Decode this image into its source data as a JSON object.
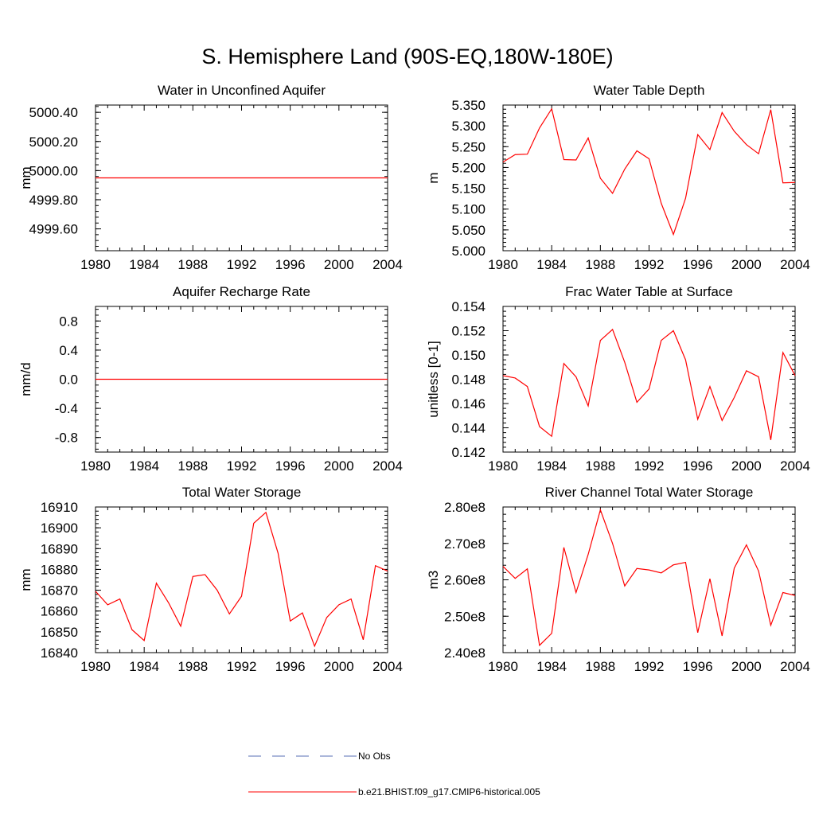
{
  "figure": {
    "title": "S. Hemisphere Land (90S-EQ,180W-180E)"
  },
  "legend": {
    "items": [
      {
        "label": "No Obs",
        "color": "#5a6fb5",
        "style": "dashed"
      },
      {
        "label": "b.e21.BHIST.f09_g17.CMIP6-historical.005",
        "color": "#ff0000",
        "style": "solid"
      }
    ]
  },
  "chart_data": [
    {
      "type": "line",
      "title": "Water in Unconfined Aquifer",
      "xlabel": "",
      "ylabel": "mm",
      "xlim": [
        1980,
        2004
      ],
      "ylim": [
        4999.45,
        5000.45
      ],
      "x_ticks": [
        1980,
        1984,
        1988,
        1992,
        1996,
        2000,
        2004
      ],
      "x_tick_labels": [
        "1980",
        "1984",
        "1988",
        "1992",
        "1996",
        "2000",
        "2004"
      ],
      "y_ticks": [
        4999.6,
        4999.8,
        5000.0,
        5000.2,
        5000.4
      ],
      "y_tick_labels": [
        "4999.60",
        "4999.80",
        "5000.00",
        "5000.20",
        "5000.40"
      ],
      "series": [
        {
          "name": "b.e21.BHIST.f09_g17.CMIP6-historical.005",
          "color": "#ff0000",
          "x": [
            1980,
            2004
          ],
          "values": [
            4999.95,
            4999.95
          ]
        }
      ]
    },
    {
      "type": "line",
      "title": "Water Table Depth",
      "xlabel": "",
      "ylabel": "m",
      "xlim": [
        1980,
        2004
      ],
      "ylim": [
        5.0,
        5.35
      ],
      "x_ticks": [
        1980,
        1984,
        1988,
        1992,
        1996,
        2000,
        2004
      ],
      "x_tick_labels": [
        "1980",
        "1984",
        "1988",
        "1992",
        "1996",
        "2000",
        "2004"
      ],
      "y_ticks": [
        5.0,
        5.05,
        5.1,
        5.15,
        5.2,
        5.25,
        5.3,
        5.35
      ],
      "y_tick_labels": [
        "5.000",
        "5.050",
        "5.100",
        "5.150",
        "5.200",
        "5.250",
        "5.300",
        "5.350"
      ],
      "series": [
        {
          "name": "b.e21.BHIST.f09_g17.CMIP6-historical.005",
          "color": "#ff0000",
          "x": [
            1980,
            1981,
            1982,
            1983,
            1984,
            1985,
            1986,
            1987,
            1988,
            1989,
            1990,
            1991,
            1992,
            1993,
            1994,
            1995,
            1996,
            1997,
            1998,
            1999,
            2000,
            2001,
            2002,
            2003,
            2004
          ],
          "values": [
            5.213,
            5.231,
            5.232,
            5.295,
            5.341,
            5.219,
            5.218,
            5.271,
            5.174,
            5.138,
            5.196,
            5.24,
            5.221,
            5.114,
            5.039,
            5.126,
            5.279,
            5.243,
            5.332,
            5.287,
            5.255,
            5.233,
            5.339,
            5.163,
            5.164
          ]
        }
      ]
    },
    {
      "type": "line",
      "title": "Aquifer Recharge Rate",
      "xlabel": "",
      "ylabel": "mm/d",
      "xlim": [
        1980,
        2004
      ],
      "ylim": [
        -1.0,
        1.0
      ],
      "x_ticks": [
        1980,
        1984,
        1988,
        1992,
        1996,
        2000,
        2004
      ],
      "x_tick_labels": [
        "1980",
        "1984",
        "1988",
        "1992",
        "1996",
        "2000",
        "2004"
      ],
      "y_ticks": [
        -0.8,
        -0.4,
        0.0,
        0.4,
        0.8
      ],
      "y_tick_labels": [
        "-0.8",
        "-0.4",
        "0.0",
        "0.4",
        "0.8"
      ],
      "series": [
        {
          "name": "b.e21.BHIST.f09_g17.CMIP6-historical.005",
          "color": "#ff0000",
          "x": [
            1980,
            2004
          ],
          "values": [
            0.0,
            0.0
          ]
        }
      ]
    },
    {
      "type": "line",
      "title": "Frac Water Table at Surface",
      "xlabel": "",
      "ylabel": "unitless [0-1]",
      "xlim": [
        1980,
        2004
      ],
      "ylim": [
        0.142,
        0.154
      ],
      "x_ticks": [
        1980,
        1984,
        1988,
        1992,
        1996,
        2000,
        2004
      ],
      "x_tick_labels": [
        "1980",
        "1984",
        "1988",
        "1992",
        "1996",
        "2000",
        "2004"
      ],
      "y_ticks": [
        0.142,
        0.144,
        0.146,
        0.148,
        0.15,
        0.152,
        0.154
      ],
      "y_tick_labels": [
        "0.142",
        "0.144",
        "0.146",
        "0.148",
        "0.150",
        "0.152",
        "0.154"
      ],
      "series": [
        {
          "name": "b.e21.BHIST.f09_g17.CMIP6-historical.005",
          "color": "#ff0000",
          "x": [
            1980,
            1981,
            1982,
            1983,
            1984,
            1985,
            1986,
            1987,
            1988,
            1989,
            1990,
            1991,
            1992,
            1993,
            1994,
            1995,
            1996,
            1997,
            1998,
            1999,
            2000,
            2001,
            2002,
            2003,
            2004
          ],
          "values": [
            0.1483,
            0.1481,
            0.1474,
            0.1441,
            0.1433,
            0.1493,
            0.1482,
            0.1458,
            0.1512,
            0.1521,
            0.1494,
            0.1461,
            0.1472,
            0.1512,
            0.152,
            0.1496,
            0.1447,
            0.1474,
            0.1446,
            0.1465,
            0.1487,
            0.1482,
            0.143,
            0.1502,
            0.1483
          ]
        }
      ]
    },
    {
      "type": "line",
      "title": "Total Water Storage",
      "xlabel": "",
      "ylabel": "mm",
      "xlim": [
        1980,
        2004
      ],
      "ylim": [
        16840,
        16910
      ],
      "x_ticks": [
        1980,
        1984,
        1988,
        1992,
        1996,
        2000,
        2004
      ],
      "x_tick_labels": [
        "1980",
        "1984",
        "1988",
        "1992",
        "1996",
        "2000",
        "2004"
      ],
      "y_ticks": [
        16840,
        16850,
        16860,
        16870,
        16880,
        16890,
        16900,
        16910
      ],
      "y_tick_labels": [
        "16840",
        "16850",
        "16860",
        "16870",
        "16880",
        "16890",
        "16900",
        "16910"
      ],
      "series": [
        {
          "name": "b.e21.BHIST.f09_g17.CMIP6-historical.005",
          "color": "#ff0000",
          "x": [
            1980,
            1981,
            1982,
            1983,
            1984,
            1985,
            1986,
            1987,
            1988,
            1989,
            1990,
            1991,
            1992,
            1993,
            1994,
            1995,
            1996,
            1997,
            1998,
            1999,
            2000,
            2001,
            2002,
            2003,
            2004
          ],
          "values": [
            16869.5,
            16863.0,
            16865.8,
            16851.0,
            16845.8,
            16873.4,
            16864.0,
            16852.7,
            16876.6,
            16877.5,
            16870.0,
            16858.6,
            16867.1,
            16902.2,
            16907.4,
            16887.8,
            16855.2,
            16859.1,
            16843.1,
            16856.9,
            16863.0,
            16865.8,
            16846.2,
            16881.8,
            16879.2
          ]
        }
      ]
    },
    {
      "type": "line",
      "title": "River Channel Total Water Storage",
      "xlabel": "",
      "ylabel": "m3",
      "xlim": [
        1980,
        2004
      ],
      "ylim": [
        240000000.0,
        280000000.0
      ],
      "x_ticks": [
        1980,
        1984,
        1988,
        1992,
        1996,
        2000,
        2004
      ],
      "x_tick_labels": [
        "1980",
        "1984",
        "1988",
        "1992",
        "1996",
        "2000",
        "2004"
      ],
      "y_ticks": [
        240000000.0,
        250000000.0,
        260000000.0,
        270000000.0,
        280000000.0
      ],
      "y_tick_labels": [
        "2.40e8",
        "2.50e8",
        "2.60e8",
        "2.70e8",
        "2.80e8"
      ],
      "series": [
        {
          "name": "b.e21.BHIST.f09_g17.CMIP6-historical.005",
          "color": "#ff0000",
          "x": [
            1980,
            1981,
            1982,
            1983,
            1984,
            1985,
            1986,
            1987,
            1988,
            1989,
            1990,
            1991,
            1992,
            1993,
            1994,
            1995,
            1996,
            1997,
            1998,
            1999,
            2000,
            2001,
            2002,
            2003,
            2004
          ],
          "values": [
            263700000.0,
            260400000.0,
            263000000.0,
            242000000.0,
            245300000.0,
            268900000.0,
            256500000.0,
            267000000.0,
            279200000.0,
            270000000.0,
            258300000.0,
            263100000.0,
            262700000.0,
            261900000.0,
            264100000.0,
            264800000.0,
            245500000.0,
            260300000.0,
            244600000.0,
            263200000.0,
            269600000.0,
            262400000.0,
            247500000.0,
            256500000.0,
            255700000.0
          ]
        }
      ]
    }
  ]
}
